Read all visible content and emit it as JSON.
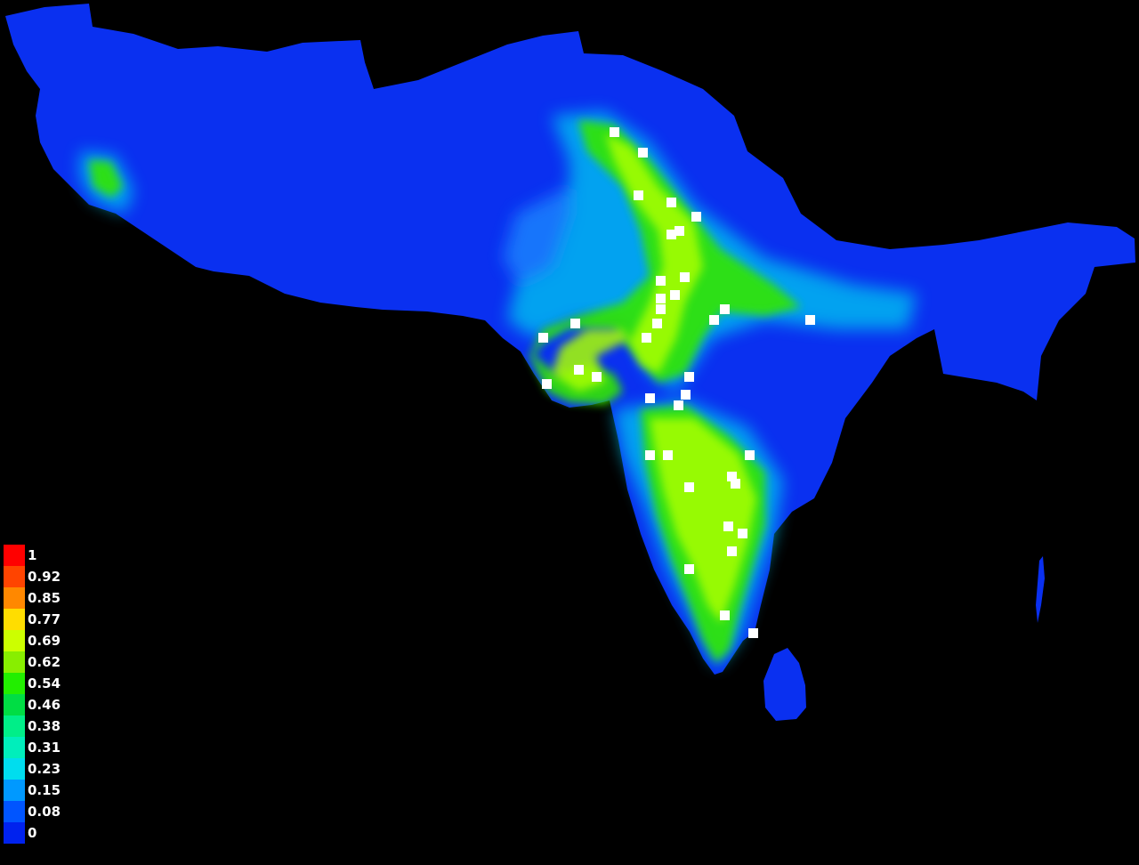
{
  "legend": {
    "items": [
      {
        "label": "1",
        "color": "#ff0000"
      },
      {
        "label": "0.92",
        "color": "#ff4400"
      },
      {
        "label": "0.85",
        "color": "#ff8800"
      },
      {
        "label": "0.77",
        "color": "#ffdd00"
      },
      {
        "label": "0.69",
        "color": "#ccff00"
      },
      {
        "label": "0.62",
        "color": "#88ee00"
      },
      {
        "label": "0.54",
        "color": "#22ee00"
      },
      {
        "label": "0.46",
        "color": "#00dd44"
      },
      {
        "label": "0.38",
        "color": "#00ee88"
      },
      {
        "label": "0.31",
        "color": "#00eebb"
      },
      {
        "label": "0.23",
        "color": "#00ddee"
      },
      {
        "label": "0.15",
        "color": "#0099ff"
      },
      {
        "label": "0.08",
        "color": "#0055ff"
      },
      {
        "label": "0",
        "color": "#0022ee"
      }
    ]
  },
  "colors": {
    "background": "#000000",
    "low_suitability": "#0a32f0",
    "mid_suitability": "#00c8e6",
    "high_suitability": "#aaff00",
    "occurrence_marker": "#ffffff"
  }
}
